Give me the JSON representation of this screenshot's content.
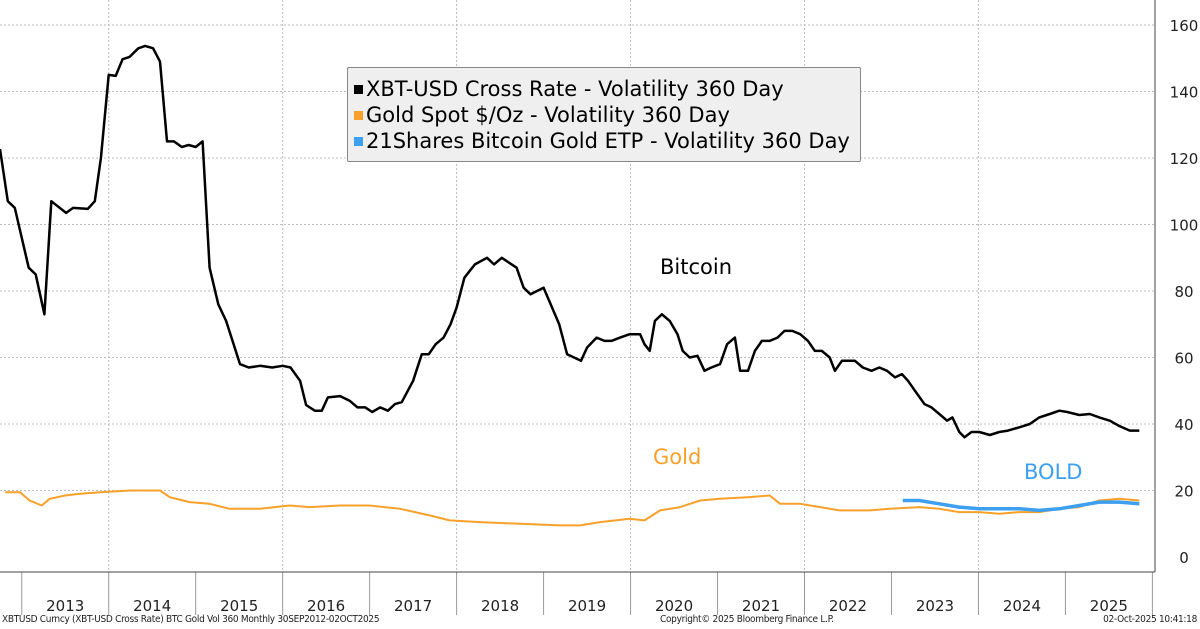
{
  "chart_data": {
    "type": "line",
    "title": "",
    "xlabel": "",
    "ylabel": "",
    "xlim": [
      2012.75,
      2026.03
    ],
    "ylim": [
      0,
      160
    ],
    "yticks": [
      0,
      20,
      40,
      60,
      80,
      100,
      120,
      140,
      160
    ],
    "y_axis_side": "right",
    "xtick_labels": [
      "2013",
      "2014",
      "2015",
      "2016",
      "2017",
      "2018",
      "2019",
      "2020",
      "2021",
      "2022",
      "2023",
      "2024",
      "2025"
    ],
    "grid": true,
    "legend_position": "top-center",
    "series": [
      {
        "name": "XBT-USD Cross Rate - Volatility 360 Day",
        "color": "#000000",
        "annotation": "Bitcoin",
        "points": [
          [
            2012.75,
            122.7
          ],
          [
            2012.84,
            107
          ],
          [
            2012.92,
            105
          ],
          [
            2013.08,
            87
          ],
          [
            2013.16,
            85
          ],
          [
            2013.26,
            73
          ],
          [
            2013.34,
            107
          ],
          [
            2013.51,
            103.5
          ],
          [
            2013.59,
            105
          ],
          [
            2013.76,
            104.7
          ],
          [
            2013.84,
            107
          ],
          [
            2013.91,
            120
          ],
          [
            2014.0,
            145
          ],
          [
            2014.08,
            144.7
          ],
          [
            2014.16,
            149.7
          ],
          [
            2014.24,
            150.4
          ],
          [
            2014.34,
            153
          ],
          [
            2014.42,
            153.7
          ],
          [
            2014.51,
            153
          ],
          [
            2014.59,
            149
          ],
          [
            2014.67,
            125
          ],
          [
            2014.75,
            125
          ],
          [
            2014.84,
            123.3
          ],
          [
            2014.92,
            123.9
          ],
          [
            2015.0,
            123.3
          ],
          [
            2015.08,
            125
          ],
          [
            2015.16,
            87
          ],
          [
            2015.26,
            76
          ],
          [
            2015.35,
            71
          ],
          [
            2015.51,
            58
          ],
          [
            2015.61,
            57
          ],
          [
            2015.74,
            57.5
          ],
          [
            2015.88,
            57
          ],
          [
            2016.0,
            57.5
          ],
          [
            2016.09,
            57
          ],
          [
            2016.2,
            53
          ],
          [
            2016.27,
            45.7
          ],
          [
            2016.37,
            44
          ],
          [
            2016.45,
            44
          ],
          [
            2016.52,
            48
          ],
          [
            2016.66,
            48.4
          ],
          [
            2016.77,
            47
          ],
          [
            2016.86,
            45
          ],
          [
            2016.95,
            45
          ],
          [
            2017.03,
            43.6
          ],
          [
            2017.12,
            45
          ],
          [
            2017.21,
            44
          ],
          [
            2017.29,
            46
          ],
          [
            2017.37,
            46.6
          ],
          [
            2017.5,
            53
          ],
          [
            2017.6,
            61
          ],
          [
            2017.68,
            61
          ],
          [
            2017.76,
            64
          ],
          [
            2017.85,
            66
          ],
          [
            2017.93,
            70
          ],
          [
            2018.0,
            75
          ],
          [
            2018.09,
            84
          ],
          [
            2018.21,
            88
          ],
          [
            2018.35,
            90
          ],
          [
            2018.43,
            88
          ],
          [
            2018.52,
            90
          ],
          [
            2018.69,
            87
          ],
          [
            2018.77,
            81
          ],
          [
            2018.85,
            79
          ],
          [
            2019.0,
            81
          ],
          [
            2019.18,
            70
          ],
          [
            2019.27,
            61
          ],
          [
            2019.43,
            59
          ],
          [
            2019.5,
            63
          ],
          [
            2019.61,
            66
          ],
          [
            2019.7,
            65
          ],
          [
            2019.78,
            65
          ],
          [
            2019.88,
            66
          ],
          [
            2019.99,
            67
          ],
          [
            2020.11,
            67
          ],
          [
            2020.16,
            64
          ],
          [
            2020.22,
            62
          ],
          [
            2020.28,
            71
          ],
          [
            2020.36,
            73
          ],
          [
            2020.45,
            71
          ],
          [
            2020.54,
            67
          ],
          [
            2020.6,
            62
          ],
          [
            2020.68,
            60
          ],
          [
            2020.77,
            60.5
          ],
          [
            2020.85,
            56
          ],
          [
            2020.93,
            57
          ],
          [
            2021.03,
            58
          ],
          [
            2021.11,
            64
          ],
          [
            2021.2,
            66
          ],
          [
            2021.26,
            56
          ],
          [
            2021.35,
            56
          ],
          [
            2021.43,
            62
          ],
          [
            2021.51,
            65
          ],
          [
            2021.6,
            65
          ],
          [
            2021.69,
            66
          ],
          [
            2021.77,
            68
          ],
          [
            2021.86,
            68
          ],
          [
            2021.95,
            67
          ],
          [
            2022.04,
            65
          ],
          [
            2022.12,
            62
          ],
          [
            2022.2,
            62
          ],
          [
            2022.29,
            60
          ],
          [
            2022.35,
            56
          ],
          [
            2022.43,
            59
          ],
          [
            2022.58,
            59
          ],
          [
            2022.67,
            57
          ],
          [
            2022.77,
            56
          ],
          [
            2022.86,
            57
          ],
          [
            2022.95,
            56
          ],
          [
            2023.04,
            54
          ],
          [
            2023.12,
            55
          ],
          [
            2023.19,
            53
          ],
          [
            2023.27,
            50
          ],
          [
            2023.38,
            46
          ],
          [
            2023.46,
            45
          ],
          [
            2023.55,
            43
          ],
          [
            2023.64,
            41
          ],
          [
            2023.7,
            42
          ],
          [
            2023.78,
            37.6
          ],
          [
            2023.84,
            36
          ],
          [
            2023.92,
            37.6
          ],
          [
            2024.01,
            37.6
          ],
          [
            2024.13,
            36.7
          ],
          [
            2024.24,
            37.6
          ],
          [
            2024.34,
            38
          ],
          [
            2024.47,
            39
          ],
          [
            2024.59,
            40
          ],
          [
            2024.7,
            42
          ],
          [
            2024.82,
            43
          ],
          [
            2024.93,
            44
          ],
          [
            2025.02,
            43.6
          ],
          [
            2025.16,
            42.7
          ],
          [
            2025.28,
            43
          ],
          [
            2025.39,
            42
          ],
          [
            2025.51,
            41
          ],
          [
            2025.62,
            39.4
          ],
          [
            2025.74,
            38
          ],
          [
            2025.85,
            38
          ]
        ]
      },
      {
        "name": "Gold Spot $/Oz - Volatility 360 Day",
        "color": "#f7a12b",
        "annotation": "Gold",
        "points": [
          [
            2012.81,
            19.5
          ],
          [
            2012.98,
            19.5
          ],
          [
            2013.09,
            17
          ],
          [
            2013.23,
            15.5
          ],
          [
            2013.32,
            17.5
          ],
          [
            2013.5,
            18.5
          ],
          [
            2013.67,
            19
          ],
          [
            2013.9,
            19.5
          ],
          [
            2014.24,
            20
          ],
          [
            2014.59,
            20
          ],
          [
            2014.7,
            18
          ],
          [
            2014.93,
            16.5
          ],
          [
            2015.16,
            16
          ],
          [
            2015.39,
            14.5
          ],
          [
            2015.74,
            14.5
          ],
          [
            2016.08,
            15.5
          ],
          [
            2016.31,
            15
          ],
          [
            2016.66,
            15.5
          ],
          [
            2017.0,
            15.5
          ],
          [
            2017.35,
            14.5
          ],
          [
            2017.69,
            12.5
          ],
          [
            2017.92,
            11
          ],
          [
            2018.27,
            10.5
          ],
          [
            2018.73,
            10
          ],
          [
            2019.19,
            9.5
          ],
          [
            2019.42,
            9.5
          ],
          [
            2019.65,
            10.5
          ],
          [
            2019.99,
            11.5
          ],
          [
            2020.16,
            11
          ],
          [
            2020.34,
            14
          ],
          [
            2020.57,
            15
          ],
          [
            2020.8,
            17
          ],
          [
            2021.03,
            17.5
          ],
          [
            2021.37,
            18
          ],
          [
            2021.6,
            18.5
          ],
          [
            2021.72,
            16
          ],
          [
            2021.95,
            16
          ],
          [
            2022.18,
            15
          ],
          [
            2022.4,
            14
          ],
          [
            2022.75,
            14
          ],
          [
            2022.98,
            14.5
          ],
          [
            2023.32,
            15
          ],
          [
            2023.55,
            14.5
          ],
          [
            2023.78,
            13.5
          ],
          [
            2024.01,
            13.5
          ],
          [
            2024.24,
            13
          ],
          [
            2024.47,
            13.5
          ],
          [
            2024.7,
            13.5
          ],
          [
            2024.93,
            14.5
          ],
          [
            2025.16,
            15
          ],
          [
            2025.39,
            17
          ],
          [
            2025.62,
            17.5
          ],
          [
            2025.85,
            17
          ]
        ]
      },
      {
        "name": "21Shares Bitcoin Gold ETP - Volatility 360 Day",
        "color": "#3d9ff0",
        "annotation": "BOLD",
        "points": [
          [
            2023.13,
            17
          ],
          [
            2023.32,
            17
          ],
          [
            2023.55,
            16
          ],
          [
            2023.78,
            15
          ],
          [
            2024.01,
            14.5
          ],
          [
            2024.24,
            14.5
          ],
          [
            2024.47,
            14.5
          ],
          [
            2024.7,
            14
          ],
          [
            2024.93,
            14.5
          ],
          [
            2025.16,
            15.5
          ],
          [
            2025.39,
            16.5
          ],
          [
            2025.62,
            16.5
          ],
          [
            2025.85,
            16
          ]
        ]
      }
    ]
  },
  "footer": {
    "source": "XBTUSD Curncy (XBT-USD Cross Rate) BTC Gold Vol 360 Monthly 30SEP2012-02OCT2025",
    "copyright": "Copyright© 2025 Bloomberg Finance L.P.",
    "timestamp": "02-Oct-2025 10:41:18"
  }
}
